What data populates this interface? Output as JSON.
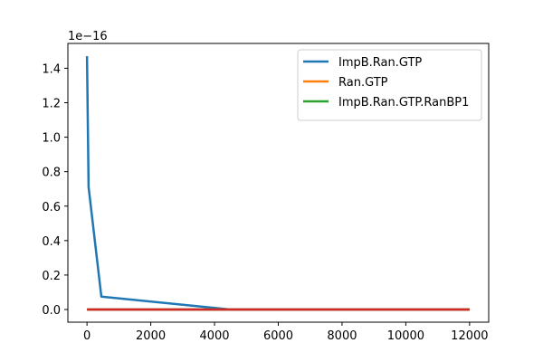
{
  "chart_data": {
    "type": "line",
    "title": "",
    "xlabel": "",
    "ylabel": "",
    "y_offset_label": "1e−16",
    "xlim": [
      -600,
      12600
    ],
    "ylim": [
      -0.0735,
      1.544
    ],
    "x_ticks": [
      0,
      2000,
      4000,
      6000,
      8000,
      10000,
      12000
    ],
    "x_tick_labels": [
      "0",
      "2000",
      "4000",
      "6000",
      "8000",
      "10000",
      "12000"
    ],
    "y_ticks": [
      0.0,
      0.2,
      0.4,
      0.6,
      0.8,
      1.0,
      1.2,
      1.4
    ],
    "y_tick_labels": [
      "0.0",
      "0.2",
      "0.4",
      "0.6",
      "0.8",
      "1.0",
      "1.2",
      "1.4"
    ],
    "grid": false,
    "legend_position": "top-right",
    "series": [
      {
        "name": "ImpB.Ran.GTP",
        "color": "#1f77b4",
        "in_legend": true,
        "x": [
          0,
          50,
          450,
          4500,
          12000
        ],
        "y": [
          1.47,
          0.71,
          0.075,
          0.0,
          0.0
        ]
      },
      {
        "name": "Ran.GTP",
        "color": "#ff7f0e",
        "in_legend": true,
        "x": [
          0,
          12000
        ],
        "y": [
          0.0,
          0.0
        ]
      },
      {
        "name": "ImpB.Ran.GTP.RanBP1",
        "color": "#2ca02c",
        "in_legend": true,
        "x": [
          0,
          12000
        ],
        "y": [
          0.0,
          0.0
        ]
      },
      {
        "name": "",
        "color": "#d62728",
        "in_legend": false,
        "x": [
          0,
          12000
        ],
        "y": [
          0.0,
          0.0
        ]
      }
    ]
  }
}
